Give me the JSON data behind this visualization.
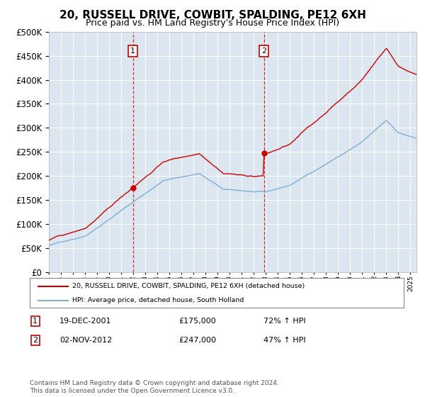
{
  "title": "20, RUSSELL DRIVE, COWBIT, SPALDING, PE12 6XH",
  "subtitle": "Price paid vs. HM Land Registry's House Price Index (HPI)",
  "title_fontsize": 11,
  "subtitle_fontsize": 9,
  "background_color": "#dce6f1",
  "plot_bg_color": "#dce6f1",
  "legend_label_red": "20, RUSSELL DRIVE, COWBIT, SPALDING, PE12 6XH (detached house)",
  "legend_label_blue": "HPI: Average price, detached house, South Holland",
  "transactions": [
    {
      "label": "1",
      "date_str": "19-DEC-2001",
      "year": 2001.97,
      "price": 175000,
      "pct": "72%"
    },
    {
      "label": "2",
      "date_str": "02-NOV-2012",
      "year": 2012.84,
      "price": 247000,
      "pct": "47%"
    }
  ],
  "footer": "Contains HM Land Registry data © Crown copyright and database right 2024.\nThis data is licensed under the Open Government Licence v3.0.",
  "ylim": [
    0,
    500000
  ],
  "ytick_step": 50000,
  "xmin": 1995,
  "xmax": 2025.5,
  "line_color_red": "#cc0000",
  "line_color_blue": "#7bafd4",
  "vline_color": "#cc0000",
  "box_color": "#cc0000"
}
